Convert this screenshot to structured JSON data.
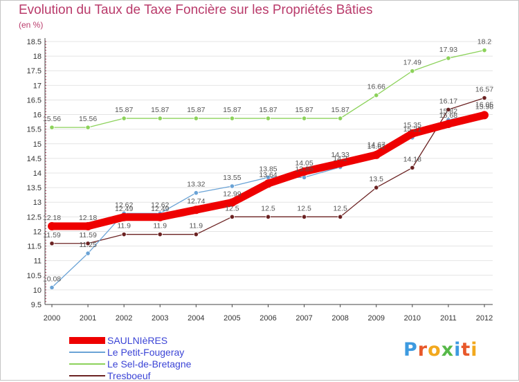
{
  "title": "Evolution du Taux de Taxe Foncière sur les Propriétés Bâties",
  "unit_label": "(en %)",
  "logo": {
    "text": "Proxiti",
    "letters": [
      "P",
      "r",
      "o",
      "x",
      "i",
      "t",
      "i"
    ],
    "colors": [
      "#3d9ae0",
      "#e8582a",
      "#f2a81d",
      "#56b848",
      "#3d9ae0",
      "#e8582a",
      "#f2a81d"
    ]
  },
  "legend": [
    {
      "label": "SAULNIèRES",
      "color": "#ee0000",
      "width": "thick"
    },
    {
      "label": "Le Petit-Fougeray",
      "color": "#6aa3d6",
      "width": "thin"
    },
    {
      "label": "Le Sel-de-Bretagne",
      "color": "#8cd25a",
      "width": "thin"
    },
    {
      "label": "Tresboeuf",
      "color": "#6b2222",
      "width": "thin"
    }
  ],
  "chart_data": {
    "type": "line",
    "title": "Evolution du Taux de Taxe Foncière sur les Propriétés Bâties",
    "ylabel": "(en %)",
    "xlabel": "",
    "ylim": [
      9.5,
      18.5
    ],
    "y_ticks": [
      "9.5",
      "10",
      "10.5",
      "11",
      "11.5",
      "12",
      "12.5",
      "13",
      "13.5",
      "14",
      "14.5",
      "15",
      "15.5",
      "16",
      "16.5",
      "17",
      "17.5",
      "18",
      "18.5"
    ],
    "categories": [
      "2000",
      "2001",
      "2002",
      "2003",
      "2004",
      "2005",
      "2006",
      "2007",
      "2008",
      "2009",
      "2010",
      "2011",
      "2012"
    ],
    "grid": "horizontal",
    "series": [
      {
        "name": "SAULNIèRES",
        "color": "#ee0000",
        "values": [
          12.18,
          12.18,
          12.49,
          12.49,
          12.74,
          12.99,
          13.64,
          14.05,
          14.33,
          14.62,
          15.35,
          15.68,
          15.98
        ],
        "labels": [
          "12.18",
          "12.18",
          "12.49",
          "12.49",
          "12.74",
          "12.99",
          "13.64",
          "14.05",
          "14.33",
          "14.62",
          "15.35",
          "15.68",
          "15.98"
        ]
      },
      {
        "name": "Le Petit-Fougeray",
        "color": "#6aa3d6",
        "values": [
          10.08,
          11.25,
          12.62,
          12.62,
          13.32,
          13.55,
          13.85,
          13.85,
          14.2,
          14.67,
          15.21,
          15.82,
          16.05
        ],
        "labels": [
          "10.08",
          "11.25",
          "12.62",
          "12.62",
          "13.32",
          "13.55",
          "13.85",
          "13.85",
          "14.2",
          "14.67",
          "15.21",
          "15.82",
          "16.05"
        ]
      },
      {
        "name": "Le Sel-de-Bretagne",
        "color": "#8cd25a",
        "values": [
          15.56,
          15.56,
          15.87,
          15.87,
          15.87,
          15.87,
          15.87,
          15.87,
          15.87,
          16.66,
          17.49,
          17.93,
          18.2
        ],
        "labels": [
          "15.56",
          "15.56",
          "15.87",
          "15.87",
          "15.87",
          "15.87",
          "15.87",
          "15.87",
          "15.87",
          "16.66",
          "17.49",
          "17.93",
          "18.2"
        ]
      },
      {
        "name": "Tresboeuf",
        "color": "#6b2222",
        "values": [
          11.59,
          11.59,
          11.9,
          11.9,
          11.9,
          12.5,
          12.5,
          12.5,
          12.5,
          13.5,
          14.18,
          16.17,
          16.57
        ],
        "labels": [
          "11.59",
          "11.59",
          "11.9",
          "11.9",
          "11.9",
          "12.5",
          "12.5",
          "12.5",
          "12.5",
          "13.5",
          "14.18",
          "16.17",
          "16.57"
        ]
      }
    ]
  }
}
